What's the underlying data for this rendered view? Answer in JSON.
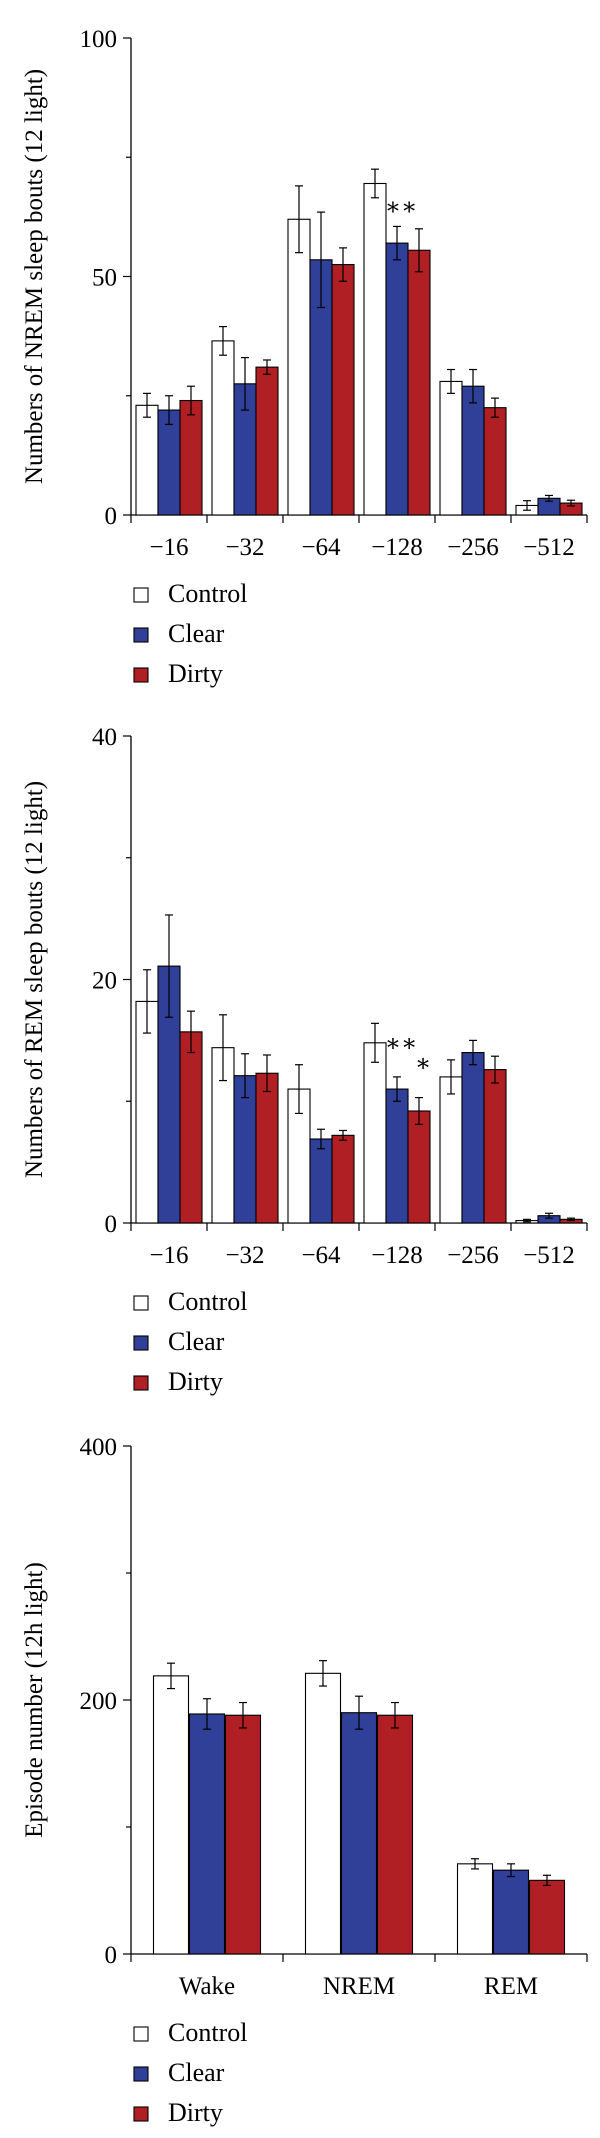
{
  "colors": {
    "Control": "#ffffff",
    "Clear": "#303f98",
    "Dirty": "#b01f24"
  },
  "chart_data": [
    {
      "type": "bar",
      "ylabel": "Numbers of NREM sleep bouts (12 light)",
      "ylim": [
        0,
        100
      ],
      "yticks": [
        0,
        50,
        100
      ],
      "categories": [
        "−16",
        "−32",
        "−64",
        "−128",
        "−256",
        "−512"
      ],
      "series": [
        {
          "name": "Control",
          "values": [
            23,
            36.5,
            62,
            69.5,
            28,
            2
          ],
          "errors": [
            2.5,
            3,
            7,
            3,
            2.5,
            1
          ]
        },
        {
          "name": "Clear",
          "values": [
            22,
            27.5,
            53.5,
            57,
            27,
            3.5
          ],
          "errors": [
            3,
            5.5,
            10,
            3.5,
            3.5,
            0.6
          ]
        },
        {
          "name": "Dirty",
          "values": [
            24,
            31,
            52.5,
            55.5,
            22.5,
            2.5
          ],
          "errors": [
            3,
            1.5,
            3.5,
            4.5,
            2,
            0.6
          ]
        }
      ],
      "annotations": [
        {
          "text": "∗∗",
          "category_index": 3
        }
      ],
      "legend": {
        "entries": [
          "Control",
          "Clear",
          "Dirty"
        ],
        "placement": "below"
      }
    },
    {
      "type": "bar",
      "ylabel": "Numbers of REM sleep bouts (12 light)",
      "ylim": [
        0,
        40
      ],
      "yticks": [
        0,
        20,
        40
      ],
      "categories": [
        "−16",
        "−32",
        "−64",
        "−128",
        "−256",
        "−512"
      ],
      "series": [
        {
          "name": "Control",
          "values": [
            18.2,
            14.4,
            11,
            14.8,
            12,
            0.2
          ],
          "errors": [
            2.6,
            2.7,
            2,
            1.6,
            1.4,
            0.1
          ]
        },
        {
          "name": "Clear",
          "values": [
            21.1,
            12.1,
            6.9,
            11,
            14,
            0.6
          ],
          "errors": [
            4.2,
            1.8,
            0.8,
            1,
            1,
            0.2
          ]
        },
        {
          "name": "Dirty",
          "values": [
            15.7,
            12.3,
            7.2,
            9.2,
            12.6,
            0.3
          ],
          "errors": [
            1.7,
            1.5,
            0.4,
            1.1,
            1.1,
            0.1
          ]
        }
      ],
      "annotations": [
        {
          "text": "∗∗",
          "category_index": 3
        },
        {
          "text": "∗",
          "category_index": 3
        }
      ],
      "legend": {
        "entries": [
          "Control",
          "Clear",
          "Dirty"
        ],
        "placement": "below"
      }
    },
    {
      "type": "bar",
      "ylabel": "Episode number (12h light)",
      "ylim": [
        0,
        400
      ],
      "yticks": [
        0,
        200,
        400
      ],
      "categories": [
        "Wake",
        "NREM",
        "REM"
      ],
      "series": [
        {
          "name": "Control",
          "values": [
            219,
            221,
            71
          ],
          "errors": [
            10,
            10,
            4
          ]
        },
        {
          "name": "Clear",
          "values": [
            189,
            190,
            66
          ],
          "errors": [
            12,
            13,
            5
          ]
        },
        {
          "name": "Dirty",
          "values": [
            188,
            188,
            58
          ],
          "errors": [
            10,
            10,
            4
          ]
        }
      ],
      "annotations": [],
      "legend": {
        "entries": [
          "Control",
          "Clear",
          "Dirty"
        ],
        "placement": "below"
      }
    }
  ]
}
